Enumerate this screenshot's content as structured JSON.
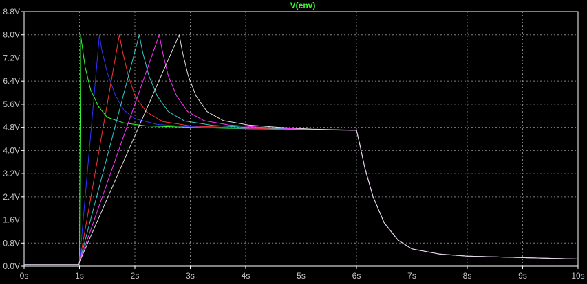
{
  "chart_data": {
    "type": "line",
    "title": "V(env)",
    "xlabel": "",
    "ylabel": "",
    "xlim": [
      0,
      10
    ],
    "ylim": [
      0,
      8.8
    ],
    "grid": true,
    "x_ticks": [
      "0s",
      "1s",
      "2s",
      "3s",
      "4s",
      "5s",
      "6s",
      "7s",
      "8s",
      "9s",
      "10s"
    ],
    "y_ticks": [
      "0.0V",
      "0.8V",
      "1.6V",
      "2.4V",
      "3.2V",
      "4.0V",
      "4.8V",
      "5.6V",
      "6.4V",
      "7.2V",
      "8.0V",
      "8.8V"
    ],
    "colors": {
      "background": "#000000",
      "axis": "#ffffff",
      "grid": "#808080",
      "title": "#33ff33",
      "tick_text": "#c8c8c8"
    },
    "series": [
      {
        "color": "#33ff33",
        "points": [
          [
            0,
            0.05
          ],
          [
            0.99,
            0.05
          ],
          [
            1.0,
            0.15
          ],
          [
            1.02,
            8.0
          ],
          [
            1.05,
            7.6
          ],
          [
            1.1,
            6.9
          ],
          [
            1.2,
            6.1
          ],
          [
            1.35,
            5.5
          ],
          [
            1.5,
            5.15
          ],
          [
            1.8,
            4.95
          ],
          [
            2.2,
            4.85
          ],
          [
            3,
            4.8
          ],
          [
            4,
            4.75
          ],
          [
            5,
            4.72
          ],
          [
            6,
            4.7
          ],
          [
            6.05,
            4.3
          ],
          [
            6.15,
            3.4
          ],
          [
            6.3,
            2.4
          ],
          [
            6.5,
            1.5
          ],
          [
            6.75,
            0.9
          ],
          [
            7,
            0.6
          ],
          [
            7.5,
            0.42
          ],
          [
            8,
            0.35
          ],
          [
            9,
            0.3
          ],
          [
            10,
            0.25
          ]
        ]
      },
      {
        "color": "#3333ff",
        "points": [
          [
            0,
            0.05
          ],
          [
            0.99,
            0.05
          ],
          [
            1.0,
            0.15
          ],
          [
            1.36,
            8.0
          ],
          [
            1.4,
            7.5
          ],
          [
            1.5,
            6.7
          ],
          [
            1.65,
            5.9
          ],
          [
            1.8,
            5.4
          ],
          [
            2.0,
            5.1
          ],
          [
            2.4,
            4.9
          ],
          [
            3,
            4.82
          ],
          [
            4,
            4.76
          ],
          [
            5,
            4.72
          ],
          [
            6,
            4.7
          ],
          [
            6.05,
            4.3
          ],
          [
            6.15,
            3.4
          ],
          [
            6.3,
            2.4
          ],
          [
            6.5,
            1.5
          ],
          [
            6.75,
            0.9
          ],
          [
            7,
            0.6
          ],
          [
            7.5,
            0.42
          ],
          [
            8,
            0.35
          ],
          [
            9,
            0.3
          ],
          [
            10,
            0.25
          ]
        ]
      },
      {
        "color": "#ff3333",
        "points": [
          [
            0,
            0.05
          ],
          [
            0.99,
            0.05
          ],
          [
            1.0,
            0.15
          ],
          [
            1.72,
            8.0
          ],
          [
            1.78,
            7.4
          ],
          [
            1.88,
            6.6
          ],
          [
            2.0,
            5.9
          ],
          [
            2.2,
            5.35
          ],
          [
            2.5,
            5.0
          ],
          [
            3,
            4.85
          ],
          [
            4,
            4.77
          ],
          [
            5,
            4.72
          ],
          [
            6,
            4.7
          ],
          [
            6.05,
            4.3
          ],
          [
            6.15,
            3.4
          ],
          [
            6.3,
            2.4
          ],
          [
            6.5,
            1.5
          ],
          [
            6.75,
            0.9
          ],
          [
            7,
            0.6
          ],
          [
            7.5,
            0.42
          ],
          [
            8,
            0.35
          ],
          [
            9,
            0.3
          ],
          [
            10,
            0.25
          ]
        ]
      },
      {
        "color": "#33cccc",
        "points": [
          [
            0,
            0.05
          ],
          [
            0.99,
            0.05
          ],
          [
            1.0,
            0.15
          ],
          [
            2.08,
            8.0
          ],
          [
            2.14,
            7.4
          ],
          [
            2.25,
            6.6
          ],
          [
            2.4,
            5.9
          ],
          [
            2.6,
            5.35
          ],
          [
            2.9,
            5.02
          ],
          [
            3.4,
            4.87
          ],
          [
            4,
            4.8
          ],
          [
            5,
            4.73
          ],
          [
            6,
            4.7
          ],
          [
            6.05,
            4.3
          ],
          [
            6.15,
            3.4
          ],
          [
            6.3,
            2.4
          ],
          [
            6.5,
            1.5
          ],
          [
            6.75,
            0.9
          ],
          [
            7,
            0.6
          ],
          [
            7.5,
            0.42
          ],
          [
            8,
            0.35
          ],
          [
            9,
            0.3
          ],
          [
            10,
            0.25
          ]
        ]
      },
      {
        "color": "#ff33ff",
        "points": [
          [
            0,
            0.05
          ],
          [
            0.99,
            0.05
          ],
          [
            1.0,
            0.15
          ],
          [
            2.44,
            8.0
          ],
          [
            2.5,
            7.4
          ],
          [
            2.6,
            6.6
          ],
          [
            2.75,
            5.9
          ],
          [
            2.95,
            5.35
          ],
          [
            3.25,
            5.03
          ],
          [
            3.7,
            4.88
          ],
          [
            4.3,
            4.8
          ],
          [
            5,
            4.74
          ],
          [
            6,
            4.7
          ],
          [
            6.05,
            4.3
          ],
          [
            6.15,
            3.4
          ],
          [
            6.3,
            2.4
          ],
          [
            6.5,
            1.5
          ],
          [
            6.75,
            0.9
          ],
          [
            7,
            0.6
          ],
          [
            7.5,
            0.42
          ],
          [
            8,
            0.35
          ],
          [
            9,
            0.3
          ],
          [
            10,
            0.25
          ]
        ]
      },
      {
        "color": "#e0e0e0",
        "points": [
          [
            0,
            0.05
          ],
          [
            0.99,
            0.05
          ],
          [
            1.0,
            0.15
          ],
          [
            2.8,
            8.0
          ],
          [
            2.86,
            7.4
          ],
          [
            2.96,
            6.6
          ],
          [
            3.1,
            5.9
          ],
          [
            3.3,
            5.35
          ],
          [
            3.6,
            5.03
          ],
          [
            4.05,
            4.88
          ],
          [
            4.6,
            4.8
          ],
          [
            5.2,
            4.74
          ],
          [
            6,
            4.7
          ],
          [
            6.05,
            4.3
          ],
          [
            6.15,
            3.4
          ],
          [
            6.3,
            2.4
          ],
          [
            6.5,
            1.5
          ],
          [
            6.75,
            0.9
          ],
          [
            7,
            0.6
          ],
          [
            7.5,
            0.42
          ],
          [
            8,
            0.35
          ],
          [
            9,
            0.3
          ],
          [
            10,
            0.25
          ]
        ]
      }
    ]
  }
}
